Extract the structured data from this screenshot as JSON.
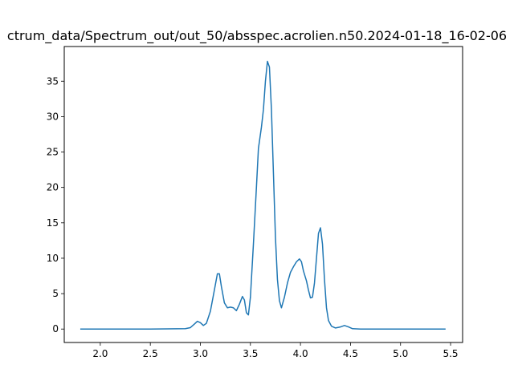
{
  "chart_data": {
    "type": "line",
    "title": "ctrum_data/Spectrum_out/out_50/absspec.acrolien.n50.2024-01-18_16-02-06",
    "xlabel": "",
    "ylabel": "",
    "xlim": [
      1.64,
      5.62
    ],
    "ylim": [
      -1.9,
      39.9
    ],
    "x_ticks": [
      2.0,
      2.5,
      3.0,
      3.5,
      4.0,
      4.5,
      5.0,
      5.5
    ],
    "x_tick_labels": [
      "2.0",
      "2.5",
      "3.0",
      "3.5",
      "4.0",
      "4.5",
      "5.0",
      "5.5"
    ],
    "y_ticks": [
      0,
      5,
      10,
      15,
      20,
      25,
      30,
      35
    ],
    "y_tick_labels": [
      "0",
      "5",
      "10",
      "15",
      "20",
      "25",
      "30",
      "35"
    ],
    "grid": false,
    "legend": "none",
    "series": [
      {
        "color": "#1f77b4",
        "points": [
          [
            1.8,
            0.0
          ],
          [
            2.0,
            0.0
          ],
          [
            2.5,
            0.0
          ],
          [
            2.85,
            0.05
          ],
          [
            2.9,
            0.2
          ],
          [
            2.94,
            0.7
          ],
          [
            2.97,
            1.1
          ],
          [
            3.0,
            0.9
          ],
          [
            3.03,
            0.5
          ],
          [
            3.06,
            0.8
          ],
          [
            3.1,
            2.5
          ],
          [
            3.14,
            5.5
          ],
          [
            3.17,
            7.8
          ],
          [
            3.19,
            7.8
          ],
          [
            3.21,
            6.0
          ],
          [
            3.24,
            3.7
          ],
          [
            3.27,
            3.0
          ],
          [
            3.3,
            3.1
          ],
          [
            3.33,
            3.0
          ],
          [
            3.36,
            2.6
          ],
          [
            3.39,
            3.5
          ],
          [
            3.42,
            4.6
          ],
          [
            3.44,
            4.1
          ],
          [
            3.46,
            2.3
          ],
          [
            3.48,
            2.0
          ],
          [
            3.5,
            4.5
          ],
          [
            3.53,
            12.0
          ],
          [
            3.56,
            20.0
          ],
          [
            3.58,
            25.5
          ],
          [
            3.61,
            28.5
          ],
          [
            3.63,
            31.0
          ],
          [
            3.65,
            35.0
          ],
          [
            3.67,
            37.8
          ],
          [
            3.69,
            37.0
          ],
          [
            3.71,
            31.0
          ],
          [
            3.73,
            22.0
          ],
          [
            3.75,
            13.0
          ],
          [
            3.77,
            7.0
          ],
          [
            3.79,
            4.0
          ],
          [
            3.81,
            3.0
          ],
          [
            3.84,
            4.5
          ],
          [
            3.87,
            6.5
          ],
          [
            3.9,
            8.0
          ],
          [
            3.93,
            8.8
          ],
          [
            3.96,
            9.5
          ],
          [
            3.99,
            9.9
          ],
          [
            4.01,
            9.5
          ],
          [
            4.03,
            8.2
          ],
          [
            4.06,
            6.8
          ],
          [
            4.08,
            5.5
          ],
          [
            4.1,
            4.4
          ],
          [
            4.12,
            4.5
          ],
          [
            4.14,
            6.5
          ],
          [
            4.16,
            10.0
          ],
          [
            4.18,
            13.5
          ],
          [
            4.2,
            14.3
          ],
          [
            4.22,
            12.0
          ],
          [
            4.24,
            7.0
          ],
          [
            4.26,
            3.0
          ],
          [
            4.28,
            1.2
          ],
          [
            4.31,
            0.4
          ],
          [
            4.35,
            0.15
          ],
          [
            4.4,
            0.3
          ],
          [
            4.44,
            0.5
          ],
          [
            4.48,
            0.3
          ],
          [
            4.52,
            0.05
          ],
          [
            4.6,
            0.0
          ],
          [
            5.0,
            0.0
          ],
          [
            5.45,
            0.0
          ]
        ]
      }
    ]
  }
}
